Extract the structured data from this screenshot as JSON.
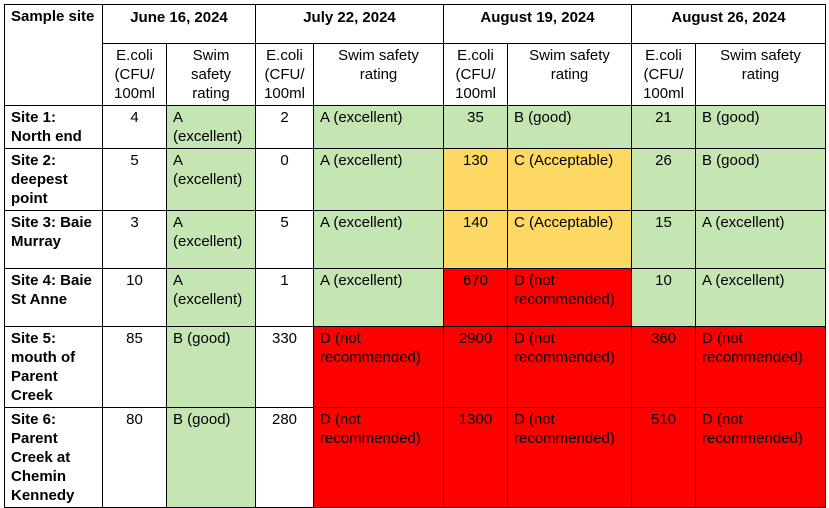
{
  "table": {
    "header": {
      "site": "Sample site",
      "dates": [
        "June 16, 2024",
        "July 22, 2024",
        "August 19, 2024",
        "August 26, 2024"
      ],
      "ecoli": "E.coli (CFU/ 100ml",
      "rating": "Swim safety rating"
    },
    "rows": [
      {
        "site": "Site 1: North end",
        "cells": [
          {
            "ecoli": "4",
            "rating": "A (excellent)",
            "color": "green",
            "ecoli_color": "white"
          },
          {
            "ecoli": "2",
            "rating": "A (excellent)",
            "color": "green",
            "ecoli_color": "white"
          },
          {
            "ecoli": "35",
            "rating": "B (good)",
            "color": "green",
            "ecoli_color": "green"
          },
          {
            "ecoli": "21",
            "rating": "B (good)",
            "color": "green",
            "ecoli_color": "green"
          }
        ]
      },
      {
        "site": "Site 2: deepest point",
        "cells": [
          {
            "ecoli": "5",
            "rating": "A (excellent)",
            "color": "green",
            "ecoli_color": "white"
          },
          {
            "ecoli": "0",
            "rating": "A (excellent)",
            "color": "green",
            "ecoli_color": "white"
          },
          {
            "ecoli": "130",
            "rating": "C (Acceptable)",
            "color": "yellow",
            "ecoli_color": "yellow"
          },
          {
            "ecoli": "26",
            "rating": "B (good)",
            "color": "green",
            "ecoli_color": "green"
          }
        ]
      },
      {
        "site": "Site 3: Baie Murray",
        "cells": [
          {
            "ecoli": "3",
            "rating": "A (excellent)",
            "color": "green",
            "ecoli_color": "white"
          },
          {
            "ecoli": "5",
            "rating": "A (excellent)",
            "color": "green",
            "ecoli_color": "white"
          },
          {
            "ecoli": "140",
            "rating": "C (Acceptable)",
            "color": "yellow",
            "ecoli_color": "yellow"
          },
          {
            "ecoli": "15",
            "rating": "A (excellent)",
            "color": "green",
            "ecoli_color": "green"
          }
        ]
      },
      {
        "site": "Site 4: Baie St Anne",
        "cells": [
          {
            "ecoli": "10",
            "rating": "A (excellent)",
            "color": "green",
            "ecoli_color": "white"
          },
          {
            "ecoli": "1",
            "rating": "A (excellent)",
            "color": "green",
            "ecoli_color": "white"
          },
          {
            "ecoli": "670",
            "rating": "D (not recommended)",
            "color": "red",
            "ecoli_color": "red"
          },
          {
            "ecoli": "10",
            "rating": "A (excellent)",
            "color": "green",
            "ecoli_color": "green"
          }
        ]
      },
      {
        "site": "Site 5: mouth of Parent Creek",
        "cells": [
          {
            "ecoli": "85",
            "rating": "B (good)",
            "color": "green",
            "ecoli_color": "white"
          },
          {
            "ecoli": "330",
            "rating": "D (not recommended)",
            "color": "red",
            "ecoli_color": "white"
          },
          {
            "ecoli": "2900",
            "rating": "D (not recommended)",
            "color": "red",
            "ecoli_color": "red"
          },
          {
            "ecoli": "360",
            "rating": "D (not recommended)",
            "color": "red",
            "ecoli_color": "red"
          }
        ]
      },
      {
        "site": "Site 6: Parent Creek at Chemin Kennedy",
        "cells": [
          {
            "ecoli": "80",
            "rating": "B (good)",
            "color": "green",
            "ecoli_color": "white"
          },
          {
            "ecoli": "280",
            "rating": "D (not recommended)",
            "color": "red",
            "ecoli_color": "white"
          },
          {
            "ecoli": "1300",
            "rating": "D (not recommended)",
            "color": "red",
            "ecoli_color": "red"
          },
          {
            "ecoli": "510",
            "rating": "D (not recommended)",
            "color": "red",
            "ecoli_color": "red"
          }
        ]
      }
    ]
  }
}
